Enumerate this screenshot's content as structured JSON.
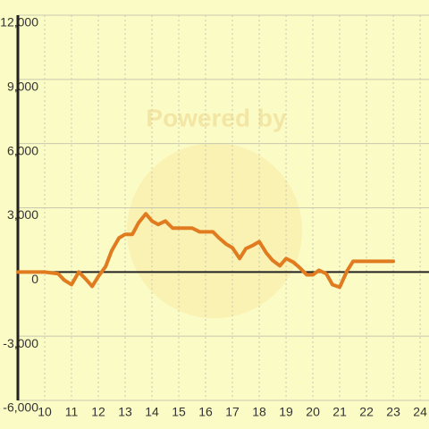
{
  "chart_data": {
    "type": "line",
    "watermark": "Powered by",
    "x": [
      9,
      10,
      10.5,
      10.73,
      11,
      11.27,
      11.53,
      11.77,
      12,
      12.27,
      12.5,
      12.77,
      13,
      13.27,
      13.5,
      13.77,
      14,
      14.23,
      14.5,
      14.77,
      15,
      15.5,
      15.77,
      16.27,
      16.5,
      16.77,
      17,
      17.27,
      17.5,
      17.77,
      18,
      18.27,
      18.5,
      18.77,
      19,
      19.27,
      19.5,
      19.77,
      20,
      20.23,
      20.5,
      20.73,
      21,
      21.27,
      21.5,
      23
    ],
    "series": [
      {
        "color": "#e07b20",
        "values": [
          0,
          0,
          -80,
          -380,
          -590,
          0,
          -330,
          -670,
          -210,
          250,
          1000,
          1590,
          1760,
          1760,
          2300,
          2720,
          2380,
          2220,
          2380,
          2050,
          2050,
          2050,
          1880,
          1880,
          1590,
          1300,
          1130,
          630,
          1090,
          1250,
          1420,
          880,
          540,
          290,
          630,
          460,
          210,
          -130,
          -130,
          80,
          -80,
          -590,
          -710,
          40,
          500,
          500
        ]
      }
    ],
    "xlim": [
      9,
      24.33
    ],
    "ylim": [
      -6000,
      12000
    ],
    "xticks": [
      10,
      11,
      12,
      13,
      14,
      15,
      16,
      17,
      18,
      19,
      20,
      21,
      22,
      23,
      24
    ],
    "yticks": [
      {
        "value": -6000,
        "label": "-6,000"
      },
      {
        "value": -3000,
        "label": "-3,000"
      },
      0,
      {
        "value": 3000,
        "label": "3,000"
      },
      {
        "value": 6000,
        "label": "6,000"
      },
      {
        "value": 9000,
        "label": "9,000"
      },
      {
        "value": 12000,
        "label": "12,000"
      }
    ],
    "grid": true
  }
}
